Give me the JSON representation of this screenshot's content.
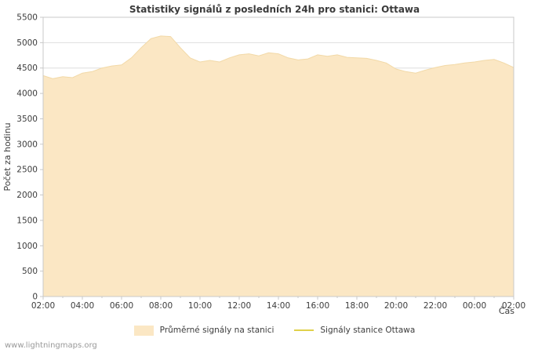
{
  "page": {
    "watermark": "www.lightningmaps.org"
  },
  "chart_data": {
    "type": "area",
    "title": "Statistiky signálů z posledních 24h pro stanici: Ottawa",
    "xlabel": "Čas",
    "ylabel": "Počet za hodinu",
    "ylim": [
      0,
      5500
    ],
    "ytick_step": 500,
    "grid": "horizontal",
    "legend_position": "bottom",
    "x_tick_labels": [
      "02:00",
      "04:00",
      "06:00",
      "08:00",
      "10:00",
      "12:00",
      "14:00",
      "16:00",
      "18:00",
      "20:00",
      "22:00",
      "00:00",
      "02:00"
    ],
    "colors": {
      "grid": "#dedede",
      "axis": "#c8c8c8",
      "tick_text": "#3c3c3c",
      "title_text": "#3b3b3b",
      "watermark_text": "#999999"
    },
    "series": [
      {
        "name": "Průměrné signály na stanici",
        "type": "area",
        "color": "#fbe7c4",
        "edge": "#f2d9a7",
        "values": [
          4350,
          4290,
          4330,
          4310,
          4400,
          4430,
          4500,
          4540,
          4560,
          4700,
          4900,
          5080,
          5130,
          5120,
          4900,
          4700,
          4620,
          4650,
          4620,
          4700,
          4760,
          4780,
          4740,
          4800,
          4780,
          4700,
          4660,
          4680,
          4760,
          4730,
          4760,
          4710,
          4700,
          4690,
          4650,
          4600,
          4480,
          4430,
          4400,
          4460,
          4510,
          4550,
          4570,
          4600,
          4620,
          4650,
          4670,
          4600,
          4510
        ]
      },
      {
        "name": "Signály stanice Ottawa",
        "type": "line",
        "color": "#e0d14b",
        "values": []
      }
    ]
  }
}
